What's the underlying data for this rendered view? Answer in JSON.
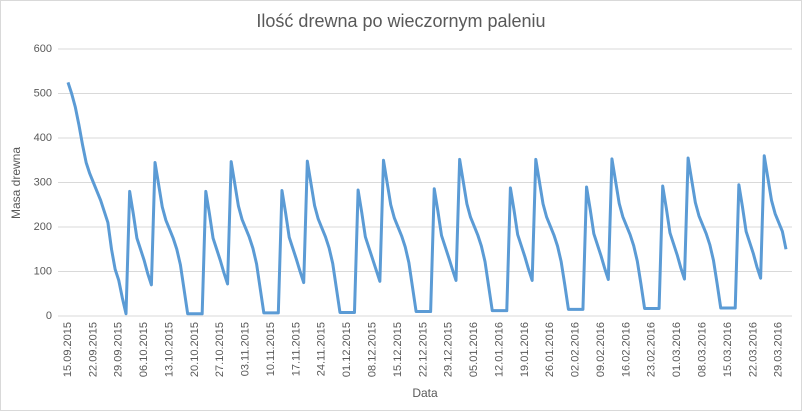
{
  "chart_data": {
    "type": "line",
    "title": "Ilość drewna po wieczornym paleniu",
    "xlabel": "Data",
    "ylabel": "Masa drewna",
    "ylim": [
      0,
      600
    ],
    "yticks": [
      0,
      100,
      200,
      300,
      400,
      500,
      600
    ],
    "grid": true,
    "categories": [
      "15.09.2015",
      null,
      null,
      null,
      null,
      null,
      null,
      "22.09.2015",
      null,
      null,
      null,
      null,
      null,
      null,
      "29.09.2015",
      null,
      null,
      null,
      null,
      null,
      null,
      "06.10.2015",
      null,
      null,
      null,
      null,
      null,
      null,
      "13.10.2015",
      null,
      null,
      null,
      null,
      null,
      null,
      "20.10.2015",
      null,
      null,
      null,
      null,
      null,
      null,
      "27.10.2015",
      null,
      null,
      null,
      null,
      null,
      null,
      "03.11.2015",
      null,
      null,
      null,
      null,
      null,
      null,
      "10.11.2015",
      null,
      null,
      null,
      null,
      null,
      null,
      "17.11.2015",
      null,
      null,
      null,
      null,
      null,
      null,
      "24.11.2015",
      null,
      null,
      null,
      null,
      null,
      null,
      "01.12.2015",
      null,
      null,
      null,
      null,
      null,
      null,
      "08.12.2015",
      null,
      null,
      null,
      null,
      null,
      null,
      "15.12.2015",
      null,
      null,
      null,
      null,
      null,
      null,
      "22.12.2015",
      null,
      null,
      null,
      null,
      null,
      null,
      "29.12.2015",
      null,
      null,
      null,
      null,
      null,
      null,
      "05.01.2016",
      null,
      null,
      null,
      null,
      null,
      null,
      "12.01.2016",
      null,
      null,
      null,
      null,
      null,
      null,
      "19.01.2016",
      null,
      null,
      null,
      null,
      null,
      null,
      "26.01.2016",
      null,
      null,
      null,
      null,
      null,
      null,
      "02.02.2016",
      null,
      null,
      null,
      null,
      null,
      null,
      "09.02.2016",
      null,
      null,
      null,
      null,
      null,
      null,
      "16.02.2016",
      null,
      null,
      null,
      null,
      null,
      null,
      "23.02.2016",
      null,
      null,
      null,
      null,
      null,
      null,
      "01.03.2016",
      null,
      null,
      null,
      null,
      null,
      null,
      "08.03.2016",
      null,
      null,
      null,
      null,
      null,
      null,
      "15.03.2016",
      null,
      null,
      null,
      null,
      null,
      null,
      "22.03.2016",
      null,
      null,
      null,
      null,
      null,
      null,
      "29.03.2016",
      null,
      null
    ],
    "series": [
      {
        "color": "#5b9bd5",
        "values": [
          525,
          500,
          470,
          430,
          385,
          345,
          320,
          300,
          280,
          260,
          235,
          210,
          150,
          105,
          80,
          40,
          5,
          280,
          230,
          175,
          150,
          125,
          95,
          70,
          345,
          295,
          245,
          215,
          195,
          175,
          150,
          115,
          60,
          5,
          5,
          5,
          5,
          5,
          280,
          230,
          175,
          150,
          125,
          97,
          72,
          347,
          297,
          247,
          217,
          197,
          177,
          152,
          117,
          62,
          7,
          7,
          7,
          7,
          7,
          282,
          232,
          177,
          152,
          127,
          100,
          75,
          348,
          298,
          248,
          218,
          198,
          178,
          153,
          118,
          63,
          8,
          8,
          8,
          8,
          8,
          283,
          233,
          178,
          153,
          128,
          103,
          78,
          350,
          300,
          250,
          220,
          200,
          180,
          155,
          120,
          65,
          10,
          10,
          10,
          10,
          10,
          286,
          236,
          181,
          156,
          131,
          105,
          80,
          352,
          302,
          252,
          222,
          202,
          182,
          157,
          122,
          67,
          12,
          12,
          12,
          12,
          12,
          288,
          238,
          183,
          158,
          133,
          105,
          80,
          352,
          302,
          252,
          222,
          202,
          182,
          157,
          122,
          70,
          15,
          15,
          15,
          15,
          15,
          290,
          240,
          185,
          160,
          135,
          107,
          82,
          353,
          303,
          253,
          223,
          203,
          183,
          158,
          123,
          72,
          17,
          17,
          17,
          17,
          17,
          292,
          242,
          187,
          162,
          137,
          108,
          83,
          355,
          305,
          255,
          225,
          205,
          185,
          160,
          125,
          73,
          18,
          18,
          18,
          18,
          18,
          295,
          245,
          190,
          165,
          140,
          110,
          85,
          360,
          310,
          260,
          230,
          210,
          190,
          150
        ]
      }
    ]
  }
}
